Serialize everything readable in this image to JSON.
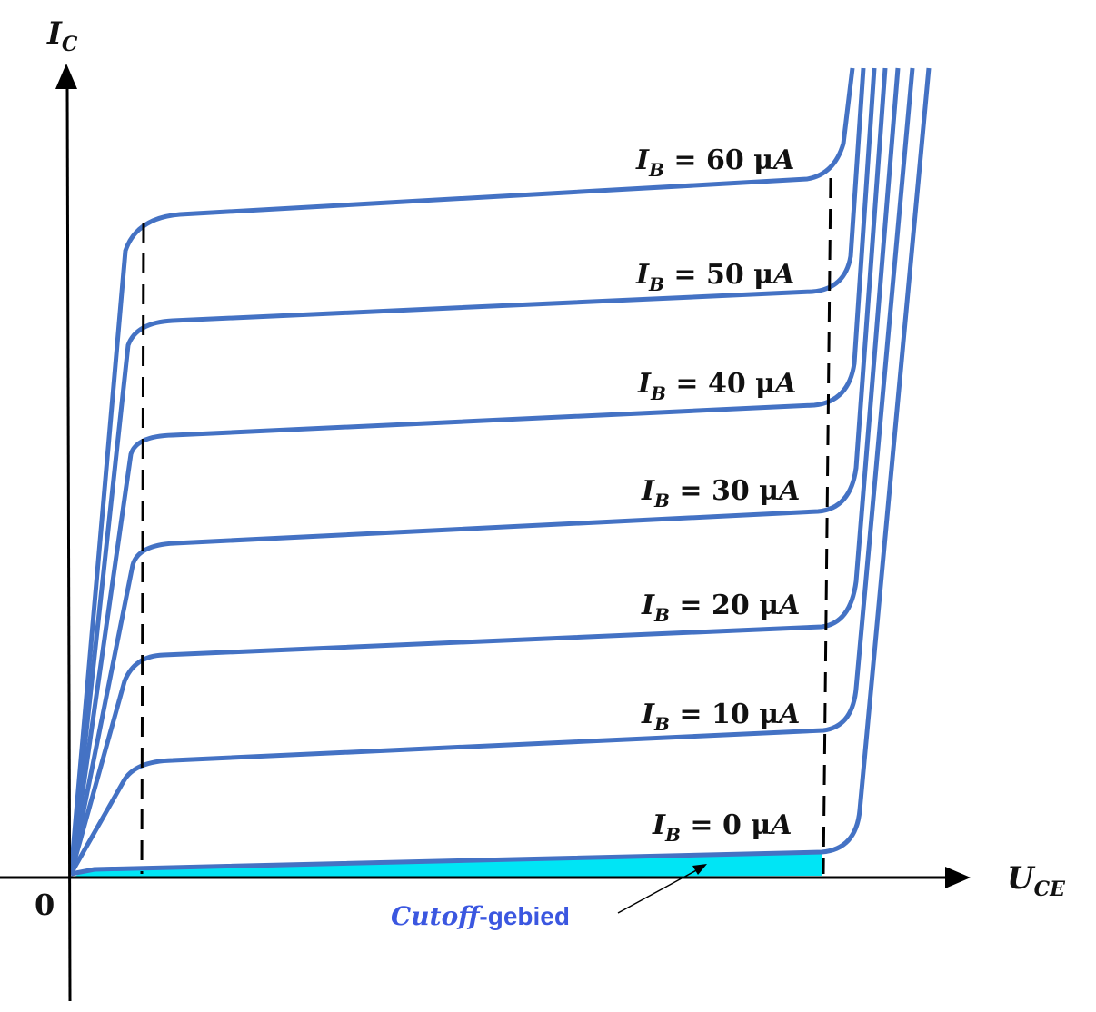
{
  "axes": {
    "y_label": "I",
    "y_label_sub": "C",
    "x_label": "U",
    "x_label_sub": "CE",
    "origin_label": "0"
  },
  "curves": [
    {
      "label_main": "I",
      "label_sub": "B",
      "label_rest": " = 60 μ",
      "label_unit": "A"
    },
    {
      "label_main": "I",
      "label_sub": "B",
      "label_rest": " = 50 μ",
      "label_unit": "A"
    },
    {
      "label_main": "I",
      "label_sub": "B",
      "label_rest": " = 40 μ",
      "label_unit": "A"
    },
    {
      "label_main": "I",
      "label_sub": "B",
      "label_rest": " = 30 μ",
      "label_unit": "A"
    },
    {
      "label_main": "I",
      "label_sub": "B",
      "label_rest": " = 20 μ",
      "label_unit": "A"
    },
    {
      "label_main": "I",
      "label_sub": "B",
      "label_rest": " = 10 μ",
      "label_unit": "A"
    },
    {
      "label_main": "I",
      "label_sub": "B",
      "label_rest": " = 0 μ",
      "label_unit": "A"
    }
  ],
  "cutoff_region": {
    "label_italic": "Cutoff",
    "label_rest": "-gebied",
    "color": "#3b57e0"
  },
  "colors": {
    "curve": "#4472c4",
    "cutoff_fill": "#00e5f5",
    "axis": "#000000"
  }
}
